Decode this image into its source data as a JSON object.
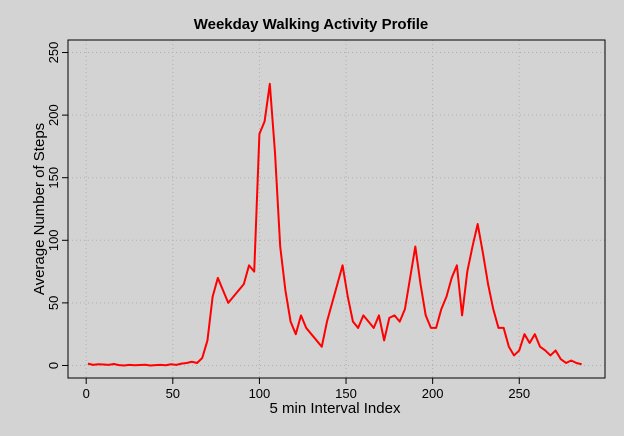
{
  "chart_data": {
    "type": "line",
    "title": "Weekday Walking Activity Profile",
    "x_label": "5 min Interval Index",
    "y_label": "Average Number of Steps",
    "x": [
      1,
      4,
      7,
      10,
      13,
      16,
      19,
      22,
      25,
      28,
      31,
      34,
      37,
      40,
      43,
      46,
      49,
      52,
      55,
      58,
      61,
      64,
      67,
      70,
      73,
      76,
      79,
      82,
      85,
      88,
      91,
      94,
      97,
      100,
      103,
      106,
      109,
      112,
      115,
      118,
      121,
      124,
      127,
      130,
      133,
      136,
      139,
      142,
      145,
      148,
      151,
      154,
      157,
      160,
      163,
      166,
      169,
      172,
      175,
      178,
      181,
      184,
      187,
      190,
      193,
      196,
      199,
      202,
      205,
      208,
      211,
      214,
      217,
      220,
      223,
      226,
      229,
      232,
      235,
      238,
      241,
      244,
      247,
      250,
      253,
      256,
      259,
      262,
      265,
      268,
      271,
      274,
      277,
      280,
      283,
      286
    ],
    "series": [
      {
        "name": "Weekday",
        "color": "#ff0000",
        "values": [
          1.5,
          0.5,
          1,
          0.8,
          0.5,
          1.2,
          0.3,
          0,
          0.5,
          0.2,
          0.4,
          0.6,
          0,
          0.3,
          0.5,
          0.2,
          1,
          0.5,
          1.5,
          2,
          3,
          2,
          6,
          20,
          55,
          70,
          60,
          50,
          55,
          60,
          65,
          80,
          75,
          185,
          195,
          225,
          170,
          95,
          60,
          35,
          25,
          40,
          30,
          25,
          20,
          15,
          35,
          50,
          65,
          80,
          55,
          35,
          30,
          40,
          35,
          30,
          40,
          20,
          38,
          40,
          35,
          45,
          70,
          95,
          65,
          40,
          30,
          30,
          45,
          55,
          70,
          80,
          40,
          75,
          95,
          113,
          90,
          65,
          45,
          30,
          30,
          15,
          8,
          12,
          25,
          18,
          25,
          15,
          12,
          8,
          12,
          5,
          2,
          4,
          2,
          1
        ]
      }
    ],
    "xlim": [
      -10.5,
      299.5
    ],
    "ylim": [
      -10,
      260
    ],
    "xticks": [
      0,
      50,
      100,
      150,
      200,
      250
    ],
    "yticks": [
      0,
      50,
      100,
      150,
      200,
      250
    ],
    "grid": true
  }
}
